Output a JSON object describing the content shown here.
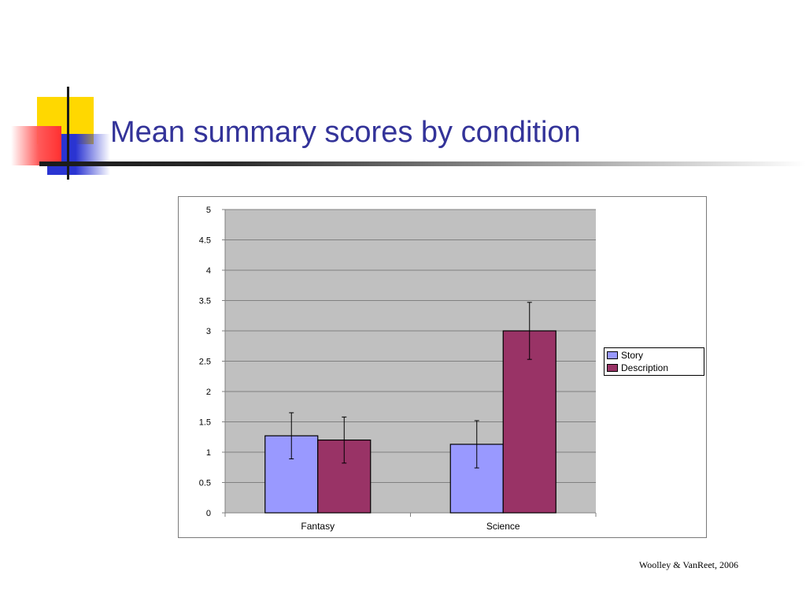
{
  "slide": {
    "title": "Mean summary scores by condition",
    "citation": "Woolley & VanReet, 2006"
  },
  "chart_data": {
    "type": "bar",
    "categories": [
      "Fantasy",
      "Science"
    ],
    "series": [
      {
        "name": "Story",
        "values": [
          1.27,
          1.13
        ],
        "error": [
          0.38,
          0.39
        ],
        "color": "#9999ff"
      },
      {
        "name": "Description",
        "values": [
          1.2,
          3.0
        ],
        "error": [
          0.38,
          0.47
        ],
        "color": "#993366"
      }
    ],
    "ylim": [
      0,
      5
    ],
    "yticks": [
      "0",
      "0.5",
      "1",
      "1.5",
      "2",
      "2.5",
      "3",
      "3.5",
      "4",
      "4.5",
      "5"
    ],
    "grid": true,
    "plot_background": "#c0c0c0",
    "legend_position": "right"
  },
  "colors": {
    "title": "#333399",
    "grid": "#808080"
  }
}
